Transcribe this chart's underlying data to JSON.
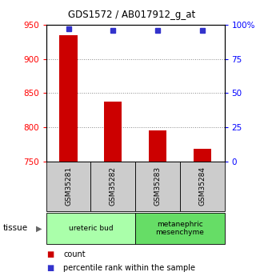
{
  "title": "GDS1572 / AB017912_g_at",
  "samples": [
    "GSM35281",
    "GSM35282",
    "GSM35283",
    "GSM35284"
  ],
  "counts": [
    935,
    838,
    796,
    768
  ],
  "percentile_ranks": [
    97,
    96,
    96,
    96
  ],
  "ylim_left": [
    750,
    950
  ],
  "ylim_right": [
    0,
    100
  ],
  "yticks_left": [
    750,
    800,
    850,
    900,
    950
  ],
  "yticks_right": [
    0,
    25,
    50,
    75,
    100
  ],
  "ytick_labels_right": [
    "0",
    "25",
    "50",
    "75",
    "100%"
  ],
  "bar_color": "#cc0000",
  "dot_color": "#3333cc",
  "grid_color": "#888888",
  "tissue_groups": [
    {
      "label": "ureteric bud",
      "samples": [
        0,
        1
      ],
      "color": "#aaffaa"
    },
    {
      "label": "metanephric\nmesenchyme",
      "samples": [
        2,
        3
      ],
      "color": "#66dd66"
    }
  ],
  "tissue_label": "tissue",
  "legend_items": [
    {
      "color": "#cc0000",
      "label": "count"
    },
    {
      "color": "#3333cc",
      "label": "percentile rank within the sample"
    }
  ],
  "background_color": "#ffffff",
  "bar_width": 0.4,
  "sample_box_color": "#cccccc"
}
